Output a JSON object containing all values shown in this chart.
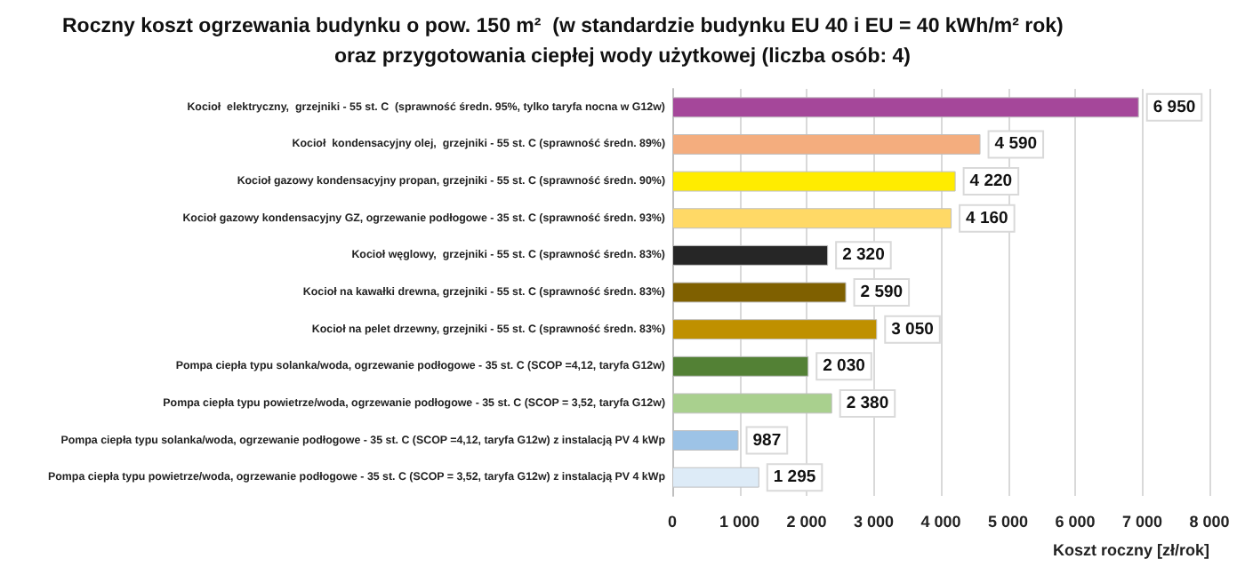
{
  "chart_data": {
    "type": "bar",
    "orientation": "horizontal",
    "title": "Roczny koszt ogrzewania budynku o pow. 150 m²  (w standardzie budynku EU 40 i EU = 40 kWh/m² rok)",
    "subtitle": "oraz przygotowania ciepłej wody użytkowej (liczba osób: 4)",
    "xlabel": "Koszt roczny [zł/rok]",
    "categories": [
      "Kocioł  elektryczny,  grzejniki - 55 st. C  (sprawność średn. 95%, tylko taryfa nocna w G12w)",
      "Kocioł  kondensacyjny olej,  grzejniki - 55 st. C (sprawność średn. 89%)",
      "Kocioł gazowy kondensacyjny propan, grzejniki - 55 st. C (sprawność średn. 90%)",
      "Kocioł gazowy kondensacyjny GZ, ogrzewanie podłogowe - 35 st. C (sprawność średn. 93%)",
      "Kocioł węglowy,  grzejniki - 55 st. C (sprawność średn. 83%)",
      "Kocioł na kawałki drewna, grzejniki - 55 st. C (sprawność średn. 83%)",
      "Kocioł na pelet drzewny, grzejniki - 55 st. C (sprawność średn. 83%)",
      "Pompa ciepła typu solanka/woda, ogrzewanie podłogowe - 35 st. C (SCOP =4,12, taryfa G12w)",
      "Pompa ciepła typu powietrze/woda, ogrzewanie podłogowe - 35 st. C (SCOP = 3,52, taryfa G12w)",
      "Pompa ciepła typu solanka/woda, ogrzewanie podłogowe - 35 st. C (SCOP =4,12, taryfa G12w) z instalacją PV 4 kWp",
      "Pompa ciepła typu powietrze/woda, ogrzewanie podłogowe - 35 st. C (SCOP = 3,52, taryfa G12w) z instalacją PV 4 kWp"
    ],
    "values": [
      6950,
      4590,
      4220,
      4160,
      2320,
      2590,
      3050,
      2030,
      2380,
      987,
      1295
    ],
    "value_labels": [
      "6 950",
      "4 590",
      "4 220",
      "4 160",
      "2 320",
      "2 590",
      "3 050",
      "2 030",
      "2 380",
      "987",
      "1 295"
    ],
    "colors": [
      "#a5479a",
      "#f4ad7e",
      "#ffec00",
      "#ffd966",
      "#262626",
      "#7f6000",
      "#bf9000",
      "#538135",
      "#a9d08e",
      "#9dc3e6",
      "#ddebf7"
    ],
    "xlim": [
      0,
      8000
    ],
    "xticks": [
      0,
      {
        "value": 1000,
        "label": "1 000"
      },
      {
        "value": 2000,
        "label": "2 000"
      },
      {
        "value": 3000,
        "label": "3 000"
      },
      {
        "value": 4000,
        "label": "4 000"
      },
      {
        "value": 5000,
        "label": "5 000"
      },
      {
        "value": 6000,
        "label": "6 000"
      },
      {
        "value": 7000,
        "label": "7 000"
      },
      {
        "value": 8000,
        "label": "8 000"
      }
    ],
    "grid": "x"
  }
}
